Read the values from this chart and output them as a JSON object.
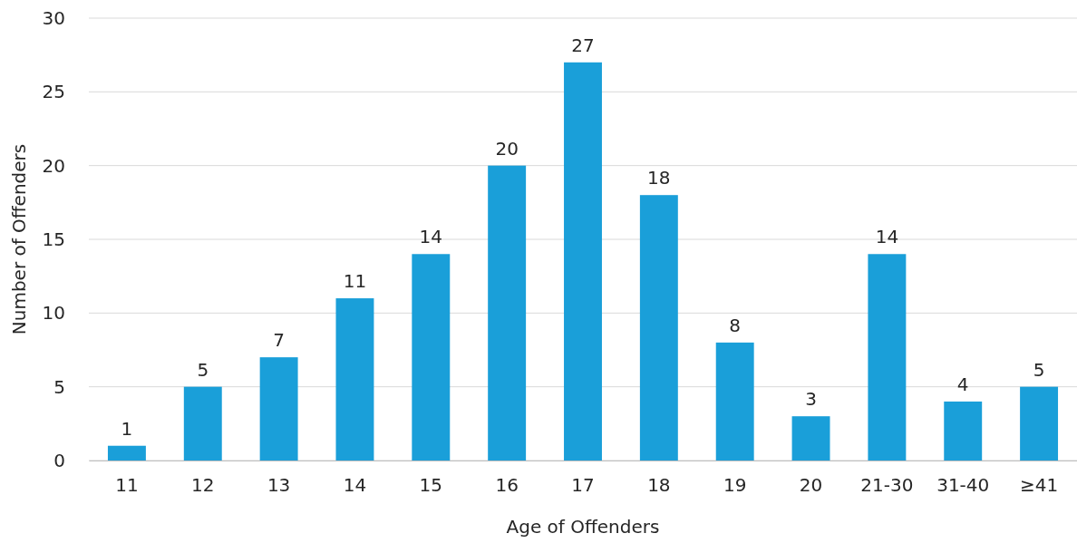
{
  "chart_data": {
    "type": "bar",
    "xlabel": "Age of Offenders",
    "ylabel": "Number of Offenders",
    "categories": [
      "11",
      "12",
      "13",
      "14",
      "15",
      "16",
      "17",
      "18",
      "19",
      "20",
      "21-30",
      "31-40",
      "≥41"
    ],
    "values": [
      1,
      5,
      7,
      11,
      14,
      20,
      27,
      18,
      8,
      3,
      14,
      4,
      5
    ],
    "color": "#1a9fd9",
    "ylim": [
      0,
      30
    ],
    "yticks": [
      0,
      5,
      10,
      15,
      20,
      25,
      30
    ],
    "grid": "y",
    "data_labels": true
  }
}
